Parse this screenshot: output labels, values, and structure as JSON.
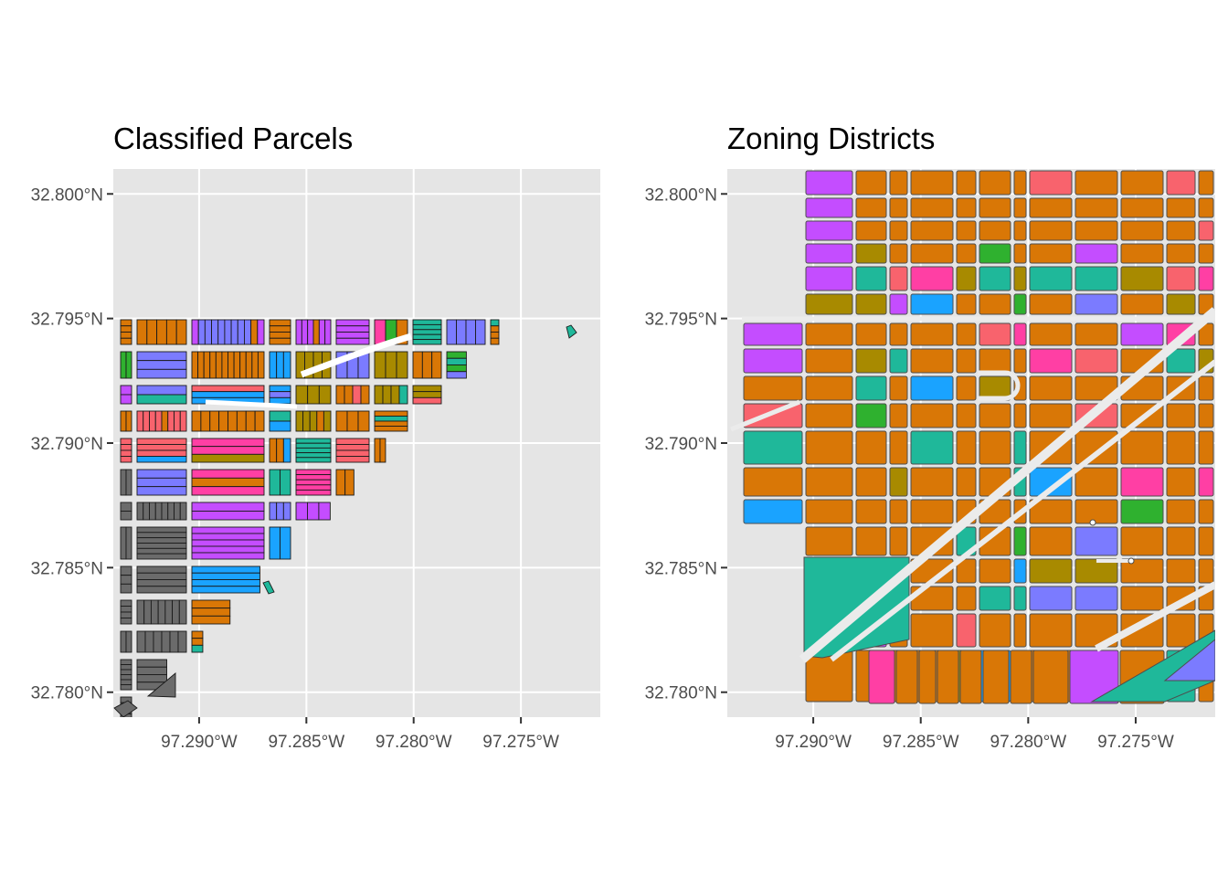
{
  "chart_data": [
    {
      "type": "map",
      "title": "Classified Parcels",
      "xlabel": "",
      "ylabel": "",
      "x_ticks": [
        "97.290°W",
        "97.285°W",
        "97.280°W",
        "97.275°W"
      ],
      "y_ticks": [
        "32.800°N",
        "32.795°N",
        "32.790°N",
        "32.785°N",
        "32.780°N"
      ],
      "x_tick_values": [
        -97.29,
        -97.285,
        -97.28,
        -97.275
      ],
      "y_tick_values": [
        32.8,
        32.795,
        32.79,
        32.785,
        32.78
      ],
      "xlim": [
        -97.294,
        -97.2713
      ],
      "ylim": [
        32.779,
        32.801
      ],
      "grid": true,
      "background": "#e5e5e5",
      "palette": [
        "#f8766d",
        "#cd9600",
        "#7cae00",
        "#00be67",
        "#00bfc4",
        "#00a9ff",
        "#c77cff",
        "#ff61cc",
        "#8fa3b7",
        "#d97706",
        "#6b6b6b"
      ]
    },
    {
      "type": "map",
      "title": "Zoning Districts",
      "xlabel": "",
      "ylabel": "",
      "x_ticks": [
        "97.290°W",
        "97.285°W",
        "97.280°W",
        "97.275°W"
      ],
      "y_ticks": [
        "32.800°N",
        "32.795°N",
        "32.790°N",
        "32.785°N",
        "32.780°N"
      ],
      "x_tick_values": [
        -97.29,
        -97.285,
        -97.28,
        -97.275
      ],
      "y_tick_values": [
        32.8,
        32.795,
        32.79,
        32.785,
        32.78
      ],
      "xlim": [
        -97.294,
        -97.2713
      ],
      "ylim": [
        32.779,
        32.801
      ],
      "grid": true,
      "background": "#e5e5e5"
    }
  ],
  "colors": {
    "orange": "#d97706",
    "olive": "#a88a00",
    "purple": "#c44dff",
    "pink": "#ff3fa4",
    "salmon": "#f8636d",
    "teal": "#1fb89a",
    "periwinkle": "#7b7bff",
    "blue": "#1aa3ff",
    "green": "#2fb12f",
    "gray": "#6b6b6b"
  }
}
